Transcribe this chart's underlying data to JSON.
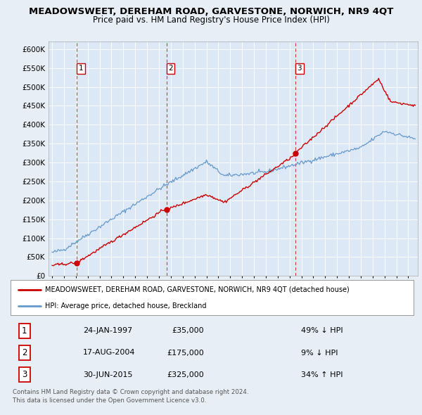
{
  "title": "MEADOWSWEET, DEREHAM ROAD, GARVESTONE, NORWICH, NR9 4QT",
  "subtitle": "Price paid vs. HM Land Registry's House Price Index (HPI)",
  "legend_line1": "MEADOWSWEET, DEREHAM ROAD, GARVESTONE, NORWICH, NR9 4QT (detached house)",
  "legend_line2": "HPI: Average price, detached house, Breckland",
  "footer1": "Contains HM Land Registry data © Crown copyright and database right 2024.",
  "footer2": "This data is licensed under the Open Government Licence v3.0.",
  "table": [
    {
      "num": "1",
      "date": "24-JAN-1997",
      "price": "£35,000",
      "hpi": "49% ↓ HPI"
    },
    {
      "num": "2",
      "date": "17-AUG-2004",
      "price": "£175,000",
      "hpi": "9% ↓ HPI"
    },
    {
      "num": "3",
      "date": "30-JUN-2015",
      "price": "£325,000",
      "hpi": "34% ↑ HPI"
    }
  ],
  "sale_year_floats": [
    1997.065,
    2004.627,
    2015.497
  ],
  "sale_prices": [
    35000,
    175000,
    325000
  ],
  "hpi_color": "#6699cc",
  "price_color": "#cc0000",
  "dashed_color": "#cc0000",
  "ylim": [
    0,
    620000
  ],
  "yticks": [
    0,
    50000,
    100000,
    150000,
    200000,
    250000,
    300000,
    350000,
    400000,
    450000,
    500000,
    550000,
    600000
  ],
  "background_color": "#e8eef5",
  "plot_bg": "#dce8f5",
  "grid_color": "#ffffff",
  "xlim_left": 1994.7,
  "xlim_right": 2025.8,
  "noise_seed": 42,
  "title_fontsize": 9.5,
  "subtitle_fontsize": 8.5
}
